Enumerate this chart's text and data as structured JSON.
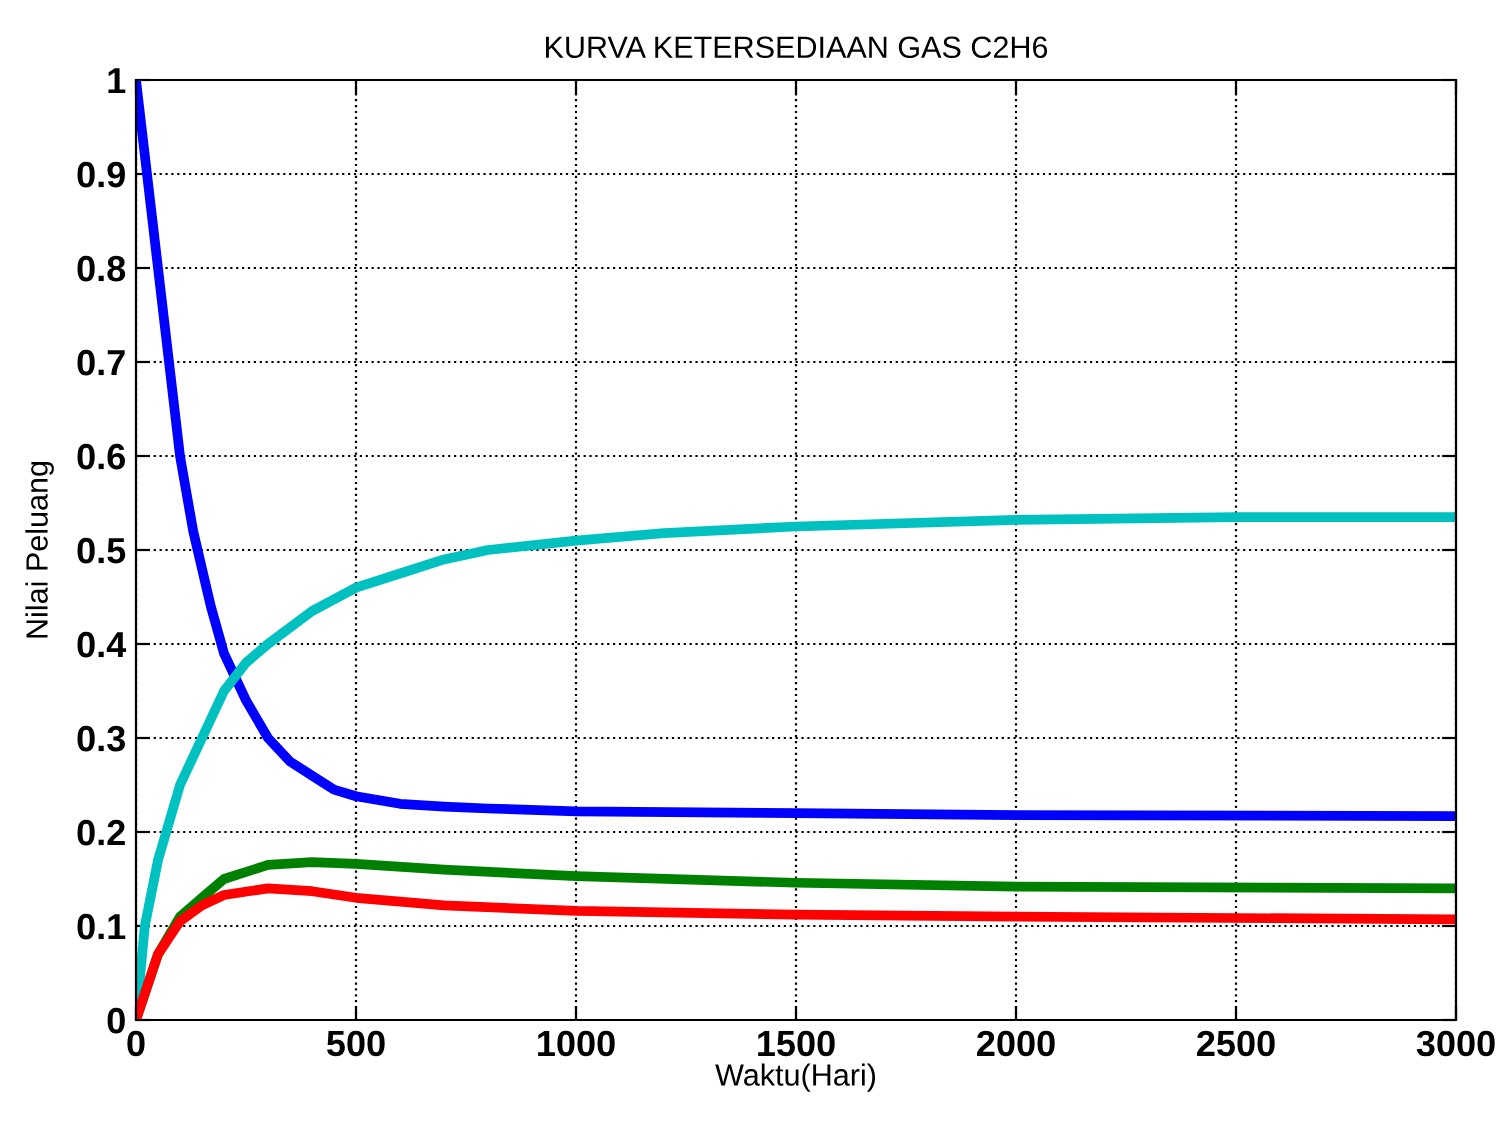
{
  "chart_data": {
    "type": "line",
    "title": "KURVA KETERSEDIAAN GAS C2H6",
    "xlabel": "Waktu(Hari)",
    "ylabel": "Nilai Peluang",
    "xlim": [
      0,
      3000
    ],
    "xticks": [
      0,
      500,
      1000,
      1500,
      2000,
      2500,
      3000
    ],
    "ylim": [
      0,
      1
    ],
    "yticks": [
      0,
      0.1,
      0.2,
      0.3,
      0.4,
      0.5,
      0.6,
      0.7,
      0.8,
      0.9,
      1
    ],
    "grid": true,
    "line_style": "solid",
    "series": [
      {
        "color": "#0000ff",
        "x": [
          0,
          25,
          50,
          75,
          100,
          130,
          170,
          200,
          250,
          300,
          350,
          400,
          450,
          500,
          600,
          700,
          800,
          1000,
          1500,
          2000,
          3000
        ],
        "values": [
          1,
          0.9,
          0.8,
          0.7,
          0.6,
          0.52,
          0.44,
          0.39,
          0.34,
          0.3,
          0.275,
          0.26,
          0.245,
          0.238,
          0.23,
          0.227,
          0.225,
          0.222,
          0.22,
          0.218,
          0.217
        ]
      },
      {
        "color": "#00c0c0",
        "x": [
          0,
          20,
          50,
          100,
          150,
          200,
          250,
          300,
          400,
          500,
          600,
          700,
          800,
          1000,
          1200,
          1500,
          2000,
          2500,
          3000
        ],
        "values": [
          0,
          0.1,
          0.17,
          0.25,
          0.3,
          0.35,
          0.38,
          0.4,
          0.435,
          0.46,
          0.475,
          0.49,
          0.5,
          0.51,
          0.518,
          0.525,
          0.532,
          0.535,
          0.535
        ]
      },
      {
        "color": "#008000",
        "x": [
          0,
          50,
          100,
          150,
          200,
          300,
          400,
          500,
          700,
          1000,
          1500,
          2000,
          3000
        ],
        "values": [
          0,
          0.07,
          0.11,
          0.13,
          0.15,
          0.165,
          0.168,
          0.166,
          0.16,
          0.153,
          0.146,
          0.142,
          0.14
        ]
      },
      {
        "color": "#ff0000",
        "x": [
          0,
          50,
          100,
          150,
          200,
          300,
          400,
          500,
          700,
          1000,
          1500,
          2000,
          3000
        ],
        "values": [
          0,
          0.07,
          0.105,
          0.122,
          0.133,
          0.14,
          0.137,
          0.13,
          0.122,
          0.116,
          0.112,
          0.11,
          0.107
        ]
      }
    ]
  }
}
